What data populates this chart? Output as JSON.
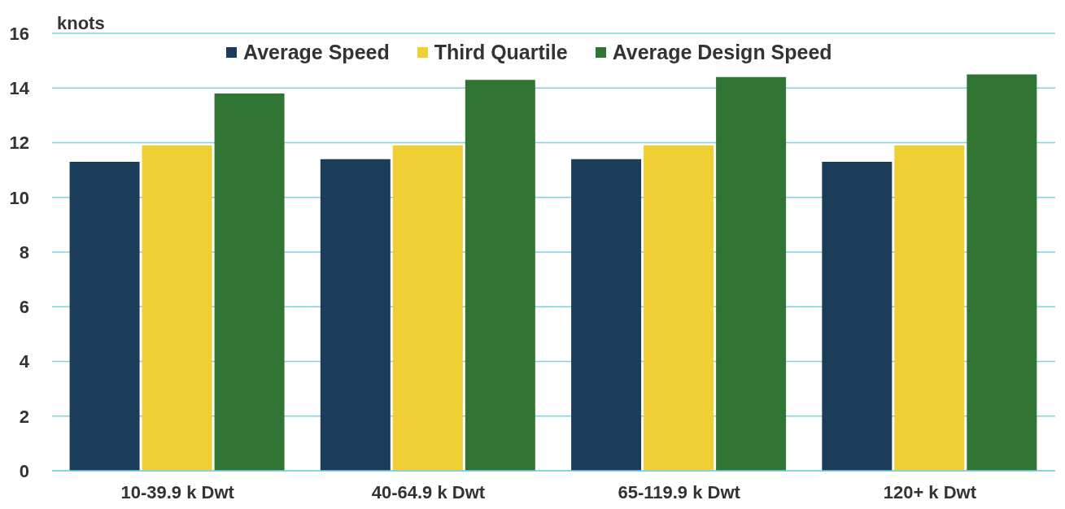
{
  "chart_data": {
    "type": "bar",
    "ylabel": "knots",
    "categories": [
      "10-39.9 k Dwt",
      "40-64.9 k Dwt",
      "65-119.9 k Dwt",
      "120+ k Dwt"
    ],
    "series": [
      {
        "name": "Average Speed",
        "color": "#1b3d59",
        "values": [
          11.3,
          11.4,
          11.4,
          11.3
        ]
      },
      {
        "name": "Third Quartile",
        "color": "#f0cf35",
        "values": [
          11.9,
          11.9,
          11.9,
          11.9
        ]
      },
      {
        "name": "Average Design Speed",
        "color": "#317535",
        "values": [
          13.8,
          14.3,
          14.4,
          14.5
        ]
      }
    ],
    "ylim": [
      0,
      16
    ],
    "yticks": [
      0,
      2,
      4,
      6,
      8,
      10,
      12,
      14,
      16
    ],
    "grid": "y",
    "legend": "top"
  }
}
